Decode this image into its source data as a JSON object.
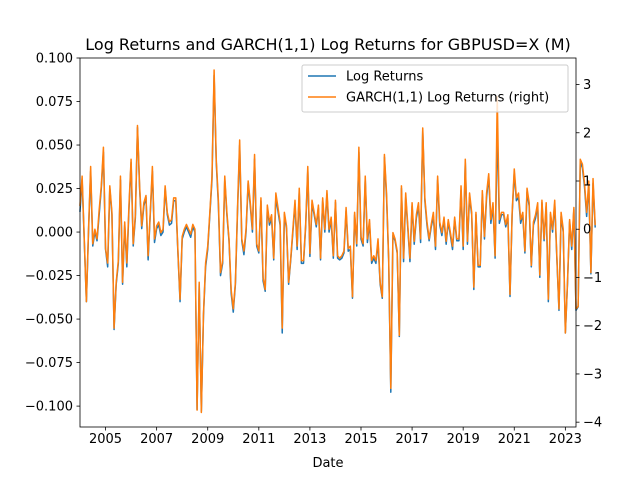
{
  "chart_data": {
    "type": "line",
    "title": "Log Returns and GARCH(1,1) Log Returns for GBPUSD=X (M)",
    "xlabel": "Date",
    "ylabel": "",
    "ylabel_right": "",
    "x_ticks": [
      "2005",
      "2007",
      "2009",
      "2011",
      "2013",
      "2015",
      "2017",
      "2019",
      "2021",
      "2023"
    ],
    "y_ticks_left": [
      "0.100",
      "0.075",
      "0.050",
      "0.025",
      "0.000",
      "−0.025",
      "−0.050",
      "−0.075",
      "−0.100"
    ],
    "y_ticks_right": [
      "3",
      "2",
      "1",
      "0",
      "−1",
      "−2",
      "−3",
      "−4"
    ],
    "xlim": [
      "2004-01",
      "2023-06"
    ],
    "ylim_left": [
      -0.112,
      0.1
    ],
    "ylim_right": [
      -4.1,
      3.55
    ],
    "legend_position": "top-right",
    "grid": false,
    "colors": {
      "log_returns": "#1f77b4",
      "garch": "#ff7f0e"
    },
    "series": [
      {
        "name": "Log Returns",
        "axis": "left",
        "color": "#1f77b4",
        "x_start": "2004-01",
        "frequency": "monthly",
        "values": [
          0.012,
          0.03,
          -0.005,
          -0.04,
          0.0,
          0.035,
          -0.008,
          0.0,
          -0.005,
          0.01,
          0.025,
          0.046,
          -0.01,
          -0.02,
          0.025,
          0.01,
          -0.056,
          -0.03,
          -0.018,
          0.03,
          -0.03,
          0.004,
          -0.02,
          0.013,
          0.04,
          -0.008,
          0.008,
          0.06,
          0.025,
          0.002,
          0.015,
          0.02,
          -0.016,
          0.01,
          0.035,
          -0.006,
          0.002,
          0.004,
          -0.002,
          0.0,
          0.025,
          0.01,
          0.004,
          0.005,
          0.018,
          0.018,
          -0.012,
          -0.04,
          -0.004,
          0.0,
          0.003,
          0.0,
          -0.003,
          0.003,
          0.0,
          -0.102,
          -0.03,
          -0.103,
          -0.048,
          -0.02,
          -0.01,
          0.01,
          0.03,
          0.09,
          0.04,
          0.016,
          -0.025,
          -0.018,
          0.03,
          0.01,
          -0.005,
          -0.035,
          -0.046,
          -0.03,
          0.012,
          0.05,
          -0.005,
          -0.013,
          0.0,
          0.028,
          0.015,
          0.0,
          0.042,
          -0.008,
          -0.012,
          0.018,
          -0.028,
          -0.034,
          0.014,
          0.004,
          0.008,
          -0.016,
          0.02,
          0.012,
          0.004,
          -0.058,
          0.01,
          0.002,
          -0.03,
          -0.016,
          0.0,
          0.016,
          -0.01,
          0.023,
          -0.018,
          -0.018,
          0.003,
          0.035,
          -0.014,
          0.016,
          0.01,
          0.003,
          0.014,
          -0.016,
          0.018,
          0.0,
          0.022,
          0.0,
          0.007,
          -0.015,
          0.017,
          -0.015,
          -0.016,
          -0.015,
          -0.012,
          0.012,
          -0.011,
          -0.01,
          -0.038,
          0.01,
          -0.008,
          0.046,
          -0.004,
          -0.008,
          0.03,
          -0.006,
          0.005,
          -0.018,
          -0.015,
          -0.018,
          -0.006,
          -0.03,
          -0.038,
          0.043,
          0.02,
          -0.016,
          -0.092,
          -0.002,
          -0.005,
          -0.012,
          -0.06,
          0.025,
          -0.017,
          0.02,
          0.002,
          -0.017,
          0.015,
          -0.007,
          0.008,
          0.015,
          -0.006,
          0.058,
          0.018,
          0.004,
          -0.005,
          0.003,
          0.009,
          -0.01,
          0.03,
          0.004,
          -0.002,
          0.007,
          -0.007,
          0.006,
          -0.002,
          -0.01,
          0.007,
          -0.005,
          -0.005,
          0.024,
          -0.01,
          0.04,
          -0.007,
          0.02,
          0.01,
          -0.033,
          0.01,
          -0.02,
          -0.02,
          0.022,
          -0.004,
          0.02,
          0.032,
          0.005,
          0.015,
          -0.015,
          0.06,
          0.005,
          0.01,
          0.01,
          0.003,
          0.008,
          -0.037,
          0.01,
          0.034,
          0.018,
          0.02,
          0.005,
          0.01,
          -0.012,
          0.023,
          0.015,
          -0.02,
          0.004,
          0.008,
          0.015,
          -0.026,
          0.017,
          -0.005,
          0.015,
          -0.04,
          0.01,
          0.0,
          0.016,
          -0.015,
          -0.045,
          0.009,
          0.0,
          -0.058,
          -0.03,
          0.006,
          -0.01,
          0.013,
          -0.045,
          -0.043,
          0.04,
          0.037,
          0.026,
          0.009,
          0.027,
          -0.024,
          0.028,
          0.003
        ]
      },
      {
        "name": "GARCH(1,1) Log Returns (right)",
        "axis": "right",
        "color": "#ff7f0e",
        "x_start": "2004-01",
        "frequency": "monthly",
        "values": [
          0.5,
          1.1,
          -0.2,
          -1.5,
          0.0,
          1.3,
          -0.3,
          0.0,
          -0.2,
          0.4,
          0.9,
          1.7,
          -0.4,
          -0.7,
          0.9,
          0.35,
          -2.05,
          -1.1,
          -0.65,
          1.1,
          -1.1,
          0.15,
          -0.7,
          0.5,
          1.45,
          -0.3,
          0.3,
          2.15,
          0.9,
          0.07,
          0.55,
          0.7,
          -0.55,
          0.35,
          1.3,
          -0.2,
          0.07,
          0.15,
          -0.07,
          0.0,
          0.9,
          0.35,
          0.15,
          0.2,
          0.65,
          0.65,
          -0.45,
          -1.45,
          -0.15,
          0.0,
          0.1,
          0.0,
          -0.1,
          0.1,
          0.0,
          -3.75,
          -1.1,
          -3.8,
          -1.75,
          -0.7,
          -0.35,
          0.35,
          1.1,
          3.3,
          1.45,
          0.6,
          -0.9,
          -0.65,
          1.1,
          0.35,
          -0.2,
          -1.25,
          -1.65,
          -1.1,
          0.45,
          1.85,
          -0.2,
          -0.45,
          0.0,
          1.0,
          0.55,
          0.0,
          1.55,
          -0.3,
          -0.45,
          0.65,
          -1.0,
          -1.25,
          0.5,
          0.15,
          0.3,
          -0.6,
          0.75,
          0.45,
          0.15,
          -2.05,
          0.35,
          0.07,
          -1.1,
          -0.6,
          0.0,
          0.6,
          -0.35,
          0.85,
          -0.65,
          -0.65,
          0.1,
          1.3,
          -0.5,
          0.6,
          0.35,
          0.1,
          0.5,
          -0.6,
          0.65,
          0.0,
          0.8,
          0.0,
          0.25,
          -0.55,
          0.6,
          -0.55,
          -0.6,
          -0.55,
          -0.45,
          0.45,
          -0.4,
          -0.35,
          -1.4,
          0.35,
          -0.3,
          1.7,
          -0.15,
          -0.3,
          1.1,
          -0.2,
          0.2,
          -0.65,
          -0.55,
          -0.65,
          -0.2,
          -1.1,
          -1.4,
          1.55,
          0.75,
          -0.6,
          -3.3,
          -0.07,
          -0.2,
          -0.45,
          -2.2,
          0.9,
          -0.6,
          0.75,
          0.07,
          -0.6,
          0.55,
          -0.25,
          0.3,
          0.55,
          -0.2,
          2.1,
          0.65,
          0.15,
          -0.2,
          0.1,
          0.35,
          -0.35,
          1.1,
          0.15,
          -0.07,
          0.25,
          -0.25,
          0.2,
          -0.07,
          -0.35,
          0.25,
          -0.2,
          -0.2,
          0.9,
          -0.35,
          1.45,
          -0.25,
          0.75,
          0.35,
          -1.2,
          0.35,
          -0.75,
          -0.75,
          0.8,
          -0.15,
          0.75,
          1.15,
          0.2,
          0.55,
          -0.55,
          2.75,
          0.2,
          0.35,
          0.35,
          0.1,
          0.3,
          -1.35,
          0.35,
          1.25,
          0.65,
          0.75,
          0.2,
          0.35,
          -0.45,
          0.85,
          0.55,
          -0.75,
          0.15,
          0.3,
          0.55,
          -0.95,
          0.6,
          -0.2,
          0.55,
          -1.45,
          0.35,
          0.0,
          0.6,
          -0.55,
          -1.65,
          0.35,
          0.0,
          -2.15,
          -1.1,
          0.2,
          -0.35,
          0.45,
          -1.65,
          -1.6,
          1.45,
          1.35,
          0.95,
          0.35,
          1.0,
          -0.9,
          1.05,
          0.1
        ]
      }
    ]
  }
}
